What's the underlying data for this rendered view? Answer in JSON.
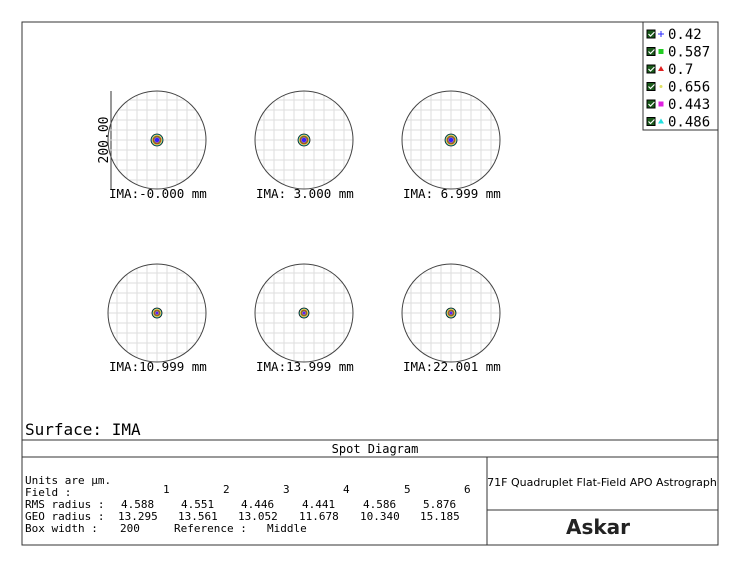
{
  "legend": [
    {
      "label": "0.42",
      "color": "#2a2aff"
    },
    {
      "label": "0.587",
      "color": "#22cc22"
    },
    {
      "label": "0.7",
      "color": "#e02020"
    },
    {
      "label": "0.656",
      "color": "#e0e060"
    },
    {
      "label": "0.443",
      "color": "#e020e0"
    },
    {
      "label": "0.486",
      "color": "#20e0e0"
    }
  ],
  "scale_label": "200.00",
  "panels": [
    {
      "label": "IMA:-0.000 mm"
    },
    {
      "label": "IMA: 3.000 mm"
    },
    {
      "label": "IMA: 6.999 mm"
    },
    {
      "label": "IMA:10.999 mm"
    },
    {
      "label": "IMA:13.999 mm"
    },
    {
      "label": "IMA:22.001 mm"
    }
  ],
  "surface": "Surface: IMA",
  "title": "Spot Diagram",
  "footer": {
    "units": "Units are µm.",
    "field_label": "Field      :",
    "fields": [
      "1",
      "2",
      "3",
      "4",
      "5",
      "6"
    ],
    "rms_label": "RMS radius :",
    "rms": [
      "4.588",
      "4.551",
      "4.446",
      "4.441",
      "4.586",
      "5.876"
    ],
    "geo_label": "GEO radius :",
    "geo": [
      "13.295",
      "13.561",
      "13.052",
      "11.678",
      "10.340",
      "15.185"
    ],
    "box_width_label": "Box width  :",
    "box_width": "200",
    "reference_label": "Reference  :",
    "reference": "Middle"
  },
  "description": "71F Quadruplet Flat-Field APO Astrograph",
  "brand": "Askar"
}
